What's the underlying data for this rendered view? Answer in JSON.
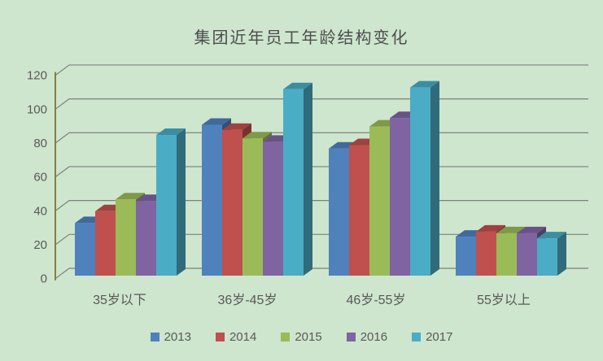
{
  "window": {
    "background_color": "#cde6cd"
  },
  "styles": {
    "text_color": "#595959",
    "title_color": "#4d4d4d",
    "axis_line_color": "#8a7c42",
    "gridline_color": "#7f7f7f"
  },
  "chart_data": {
    "type": "bar",
    "projection": "3d-clustered-column",
    "title": "集团近年员工年龄结构变化",
    "categories": [
      "35岁以下",
      "36岁-45岁",
      "46岁-55岁",
      "55岁以上"
    ],
    "series": [
      {
        "name": "2013",
        "color": "#4F81BD",
        "values": [
          31,
          89,
          75,
          23
        ]
      },
      {
        "name": "2014",
        "color": "#C0504D",
        "values": [
          38,
          86,
          77,
          26
        ]
      },
      {
        "name": "2015",
        "color": "#9BBB59",
        "values": [
          45,
          81,
          88,
          25
        ]
      },
      {
        "name": "2016",
        "color": "#8064A2",
        "values": [
          44,
          79,
          93,
          25
        ]
      },
      {
        "name": "2017",
        "color": "#4BACC6",
        "values": [
          83,
          110,
          111,
          22
        ]
      }
    ],
    "y_axis": {
      "min": 0,
      "max": 120,
      "step": 20,
      "tick_labels": [
        "0",
        "20",
        "40",
        "60",
        "80",
        "100",
        "120"
      ]
    },
    "xlabel": "",
    "ylabel": "",
    "grid": true,
    "legend_position": "bottom"
  }
}
